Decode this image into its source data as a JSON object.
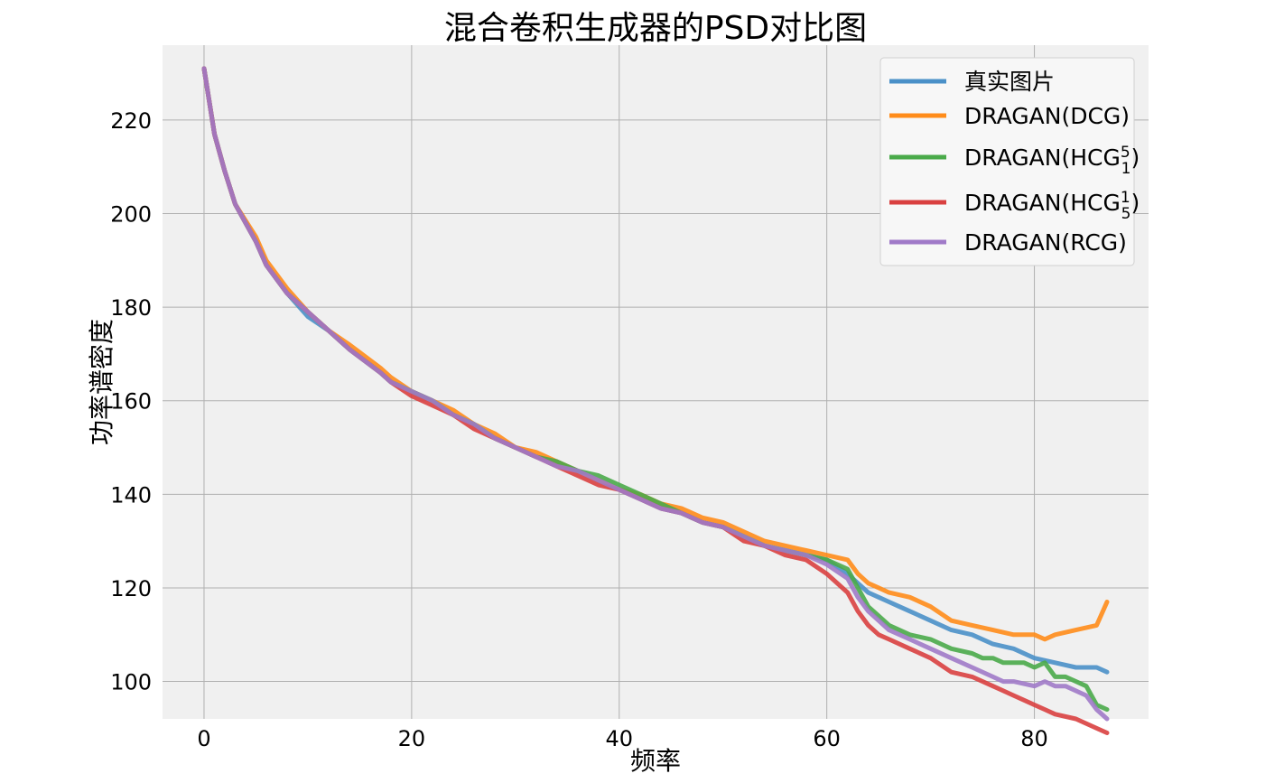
{
  "chart_data": {
    "type": "line",
    "title": "混合卷积生成器的PSD对比图",
    "xlabel": "频率",
    "ylabel": "功率谱密度",
    "xlim": [
      -4,
      91
    ],
    "ylim": [
      92,
      236
    ],
    "xticks": [
      0,
      20,
      40,
      60,
      80
    ],
    "yticks": [
      100,
      120,
      140,
      160,
      180,
      200,
      220
    ],
    "grid": true,
    "legend_position": "top-right",
    "plot_background": "#f0f0f0",
    "series": [
      {
        "name": "真实图片",
        "color": "#4a90c8",
        "points": [
          [
            0,
            231
          ],
          [
            1,
            217
          ],
          [
            2,
            209
          ],
          [
            3,
            202
          ],
          [
            5,
            194
          ],
          [
            6,
            189
          ],
          [
            8,
            183
          ],
          [
            10,
            178
          ],
          [
            12,
            175
          ],
          [
            14,
            171
          ],
          [
            17,
            166
          ],
          [
            18,
            164
          ],
          [
            20,
            162
          ],
          [
            22,
            160
          ],
          [
            24,
            157
          ],
          [
            26,
            155
          ],
          [
            28,
            152
          ],
          [
            30,
            150
          ],
          [
            32,
            148
          ],
          [
            34,
            147
          ],
          [
            36,
            145
          ],
          [
            38,
            143
          ],
          [
            40,
            141
          ],
          [
            42,
            139
          ],
          [
            44,
            137
          ],
          [
            46,
            136
          ],
          [
            48,
            134
          ],
          [
            50,
            133
          ],
          [
            52,
            131
          ],
          [
            54,
            129
          ],
          [
            56,
            128
          ],
          [
            58,
            127
          ],
          [
            60,
            126
          ],
          [
            62,
            123
          ],
          [
            63,
            121
          ],
          [
            64,
            119
          ],
          [
            65,
            118
          ],
          [
            66,
            117
          ],
          [
            67,
            116
          ],
          [
            68,
            115
          ],
          [
            70,
            113
          ],
          [
            72,
            111
          ],
          [
            74,
            110
          ],
          [
            76,
            108
          ],
          [
            78,
            107
          ],
          [
            80,
            105
          ],
          [
            82,
            104
          ],
          [
            84,
            103
          ],
          [
            86,
            103
          ],
          [
            87,
            102
          ]
        ]
      },
      {
        "name": "DRAGAN(DCG)",
        "color": "#ff8c1a",
        "points": [
          [
            0,
            231
          ],
          [
            1,
            217
          ],
          [
            2,
            209
          ],
          [
            3,
            202
          ],
          [
            5,
            195
          ],
          [
            6,
            190
          ],
          [
            8,
            184
          ],
          [
            10,
            179
          ],
          [
            12,
            175
          ],
          [
            14,
            172
          ],
          [
            17,
            167
          ],
          [
            18,
            165
          ],
          [
            20,
            162
          ],
          [
            22,
            160
          ],
          [
            24,
            158
          ],
          [
            26,
            155
          ],
          [
            28,
            153
          ],
          [
            30,
            150
          ],
          [
            32,
            149
          ],
          [
            34,
            147
          ],
          [
            36,
            145
          ],
          [
            38,
            143
          ],
          [
            40,
            141
          ],
          [
            42,
            140
          ],
          [
            44,
            138
          ],
          [
            46,
            137
          ],
          [
            48,
            135
          ],
          [
            50,
            134
          ],
          [
            52,
            132
          ],
          [
            54,
            130
          ],
          [
            56,
            129
          ],
          [
            58,
            128
          ],
          [
            60,
            127
          ],
          [
            62,
            126
          ],
          [
            63,
            123
          ],
          [
            64,
            121
          ],
          [
            65,
            120
          ],
          [
            66,
            119
          ],
          [
            68,
            118
          ],
          [
            70,
            116
          ],
          [
            72,
            113
          ],
          [
            74,
            112
          ],
          [
            76,
            111
          ],
          [
            78,
            110
          ],
          [
            80,
            110
          ],
          [
            81,
            109
          ],
          [
            82,
            110
          ],
          [
            84,
            111
          ],
          [
            86,
            112
          ],
          [
            87,
            117
          ]
        ]
      },
      {
        "name": "DRAGAN(HCG15)",
        "color": "#4aaa4a",
        "points": [
          [
            0,
            231
          ],
          [
            1,
            217
          ],
          [
            2,
            209
          ],
          [
            3,
            202
          ],
          [
            5,
            194
          ],
          [
            6,
            189
          ],
          [
            8,
            183
          ],
          [
            10,
            179
          ],
          [
            12,
            175
          ],
          [
            14,
            171
          ],
          [
            17,
            166
          ],
          [
            18,
            164
          ],
          [
            20,
            162
          ],
          [
            22,
            160
          ],
          [
            24,
            157
          ],
          [
            26,
            155
          ],
          [
            28,
            152
          ],
          [
            30,
            150
          ],
          [
            32,
            148
          ],
          [
            34,
            147
          ],
          [
            36,
            145
          ],
          [
            38,
            144
          ],
          [
            40,
            142
          ],
          [
            42,
            140
          ],
          [
            44,
            138
          ],
          [
            46,
            136
          ],
          [
            48,
            134
          ],
          [
            50,
            133
          ],
          [
            52,
            131
          ],
          [
            54,
            129
          ],
          [
            56,
            128
          ],
          [
            58,
            127
          ],
          [
            60,
            126
          ],
          [
            62,
            124
          ],
          [
            63,
            120
          ],
          [
            64,
            116
          ],
          [
            65,
            114
          ],
          [
            66,
            112
          ],
          [
            68,
            110
          ],
          [
            70,
            109
          ],
          [
            72,
            107
          ],
          [
            74,
            106
          ],
          [
            75,
            105
          ],
          [
            76,
            105
          ],
          [
            77,
            104
          ],
          [
            79,
            104
          ],
          [
            80,
            103
          ],
          [
            81,
            104
          ],
          [
            82,
            101
          ],
          [
            83,
            101
          ],
          [
            85,
            99
          ],
          [
            86,
            95
          ],
          [
            87,
            94
          ]
        ]
      },
      {
        "name": "DRAGAN(HCG51)",
        "color": "#d94040",
        "points": [
          [
            0,
            231
          ],
          [
            1,
            217
          ],
          [
            2,
            209
          ],
          [
            3,
            202
          ],
          [
            5,
            194
          ],
          [
            6,
            189
          ],
          [
            8,
            183
          ],
          [
            10,
            179
          ],
          [
            12,
            175
          ],
          [
            14,
            171
          ],
          [
            17,
            166
          ],
          [
            18,
            164
          ],
          [
            20,
            161
          ],
          [
            22,
            159
          ],
          [
            24,
            157
          ],
          [
            26,
            154
          ],
          [
            28,
            152
          ],
          [
            30,
            150
          ],
          [
            32,
            148
          ],
          [
            34,
            146
          ],
          [
            36,
            144
          ],
          [
            38,
            142
          ],
          [
            40,
            141
          ],
          [
            42,
            139
          ],
          [
            44,
            137
          ],
          [
            46,
            136
          ],
          [
            48,
            134
          ],
          [
            50,
            133
          ],
          [
            52,
            130
          ],
          [
            54,
            129
          ],
          [
            56,
            127
          ],
          [
            58,
            126
          ],
          [
            60,
            123
          ],
          [
            62,
            119
          ],
          [
            63,
            115
          ],
          [
            64,
            112
          ],
          [
            65,
            110
          ],
          [
            66,
            109
          ],
          [
            68,
            107
          ],
          [
            70,
            105
          ],
          [
            72,
            102
          ],
          [
            74,
            101
          ],
          [
            76,
            99
          ],
          [
            77,
            98
          ],
          [
            78,
            97
          ],
          [
            80,
            95
          ],
          [
            81,
            94
          ],
          [
            82,
            93
          ],
          [
            84,
            92
          ],
          [
            86,
            90
          ],
          [
            87,
            89
          ]
        ]
      },
      {
        "name": "DRAGAN(RCG)",
        "color": "#a07ac8",
        "points": [
          [
            0,
            231
          ],
          [
            1,
            217
          ],
          [
            2,
            209
          ],
          [
            3,
            202
          ],
          [
            5,
            194
          ],
          [
            6,
            189
          ],
          [
            8,
            183
          ],
          [
            10,
            179
          ],
          [
            12,
            175
          ],
          [
            14,
            171
          ],
          [
            17,
            166
          ],
          [
            18,
            164
          ],
          [
            20,
            162
          ],
          [
            22,
            160
          ],
          [
            24,
            157
          ],
          [
            26,
            155
          ],
          [
            28,
            152
          ],
          [
            30,
            150
          ],
          [
            32,
            148
          ],
          [
            34,
            146
          ],
          [
            36,
            145
          ],
          [
            38,
            143
          ],
          [
            40,
            141
          ],
          [
            42,
            139
          ],
          [
            44,
            137
          ],
          [
            46,
            136
          ],
          [
            48,
            134
          ],
          [
            50,
            133
          ],
          [
            52,
            131
          ],
          [
            54,
            129
          ],
          [
            56,
            128
          ],
          [
            58,
            127
          ],
          [
            60,
            125
          ],
          [
            62,
            122
          ],
          [
            63,
            118
          ],
          [
            64,
            115
          ],
          [
            65,
            113
          ],
          [
            66,
            111
          ],
          [
            68,
            109
          ],
          [
            70,
            107
          ],
          [
            72,
            105
          ],
          [
            74,
            103
          ],
          [
            76,
            101
          ],
          [
            77,
            100
          ],
          [
            78,
            100
          ],
          [
            80,
            99
          ],
          [
            81,
            100
          ],
          [
            82,
            99
          ],
          [
            83,
            99
          ],
          [
            85,
            97
          ],
          [
            86,
            94
          ],
          [
            87,
            92
          ]
        ]
      }
    ]
  }
}
